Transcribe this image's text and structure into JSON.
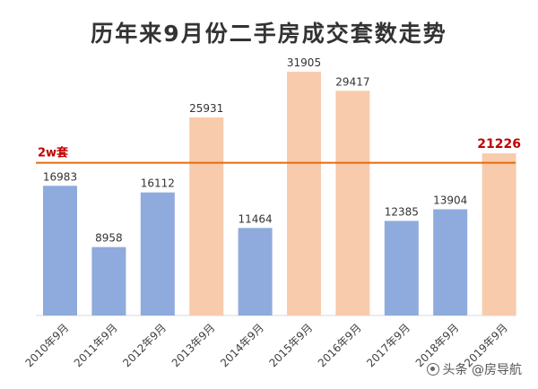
{
  "chart_data": {
    "type": "bar",
    "title": "历年来9月份二手房成交套数走势",
    "categories": [
      "2010年9月",
      "2011年9月",
      "2012年9月",
      "2013年9月",
      "2014年9月",
      "2015年9月",
      "2016年9月",
      "2017年9月",
      "2018年9月",
      "2019年9月"
    ],
    "values": [
      16983,
      8958,
      16112,
      25931,
      11464,
      31905,
      29417,
      12385,
      13904,
      21226
    ],
    "bar_colors": [
      "#8faadc",
      "#8faadc",
      "#8faadc",
      "#f8cbad",
      "#8faadc",
      "#f8cbad",
      "#f8cbad",
      "#8faadc",
      "#8faadc",
      "#f8cbad"
    ],
    "value_label_colors": [
      "#333333",
      "#333333",
      "#333333",
      "#333333",
      "#333333",
      "#333333",
      "#333333",
      "#333333",
      "#333333",
      "#c00000"
    ],
    "reference_line": {
      "value": 20000,
      "label": "2w套",
      "color": "#e46c0a",
      "label_color": "#c00000"
    },
    "ylim": [
      0,
      34500
    ],
    "xlabel": "",
    "ylabel": "",
    "grid": false,
    "legend": "none"
  },
  "watermark": {
    "text": "头条 @房导航",
    "icon": "camera-icon"
  }
}
